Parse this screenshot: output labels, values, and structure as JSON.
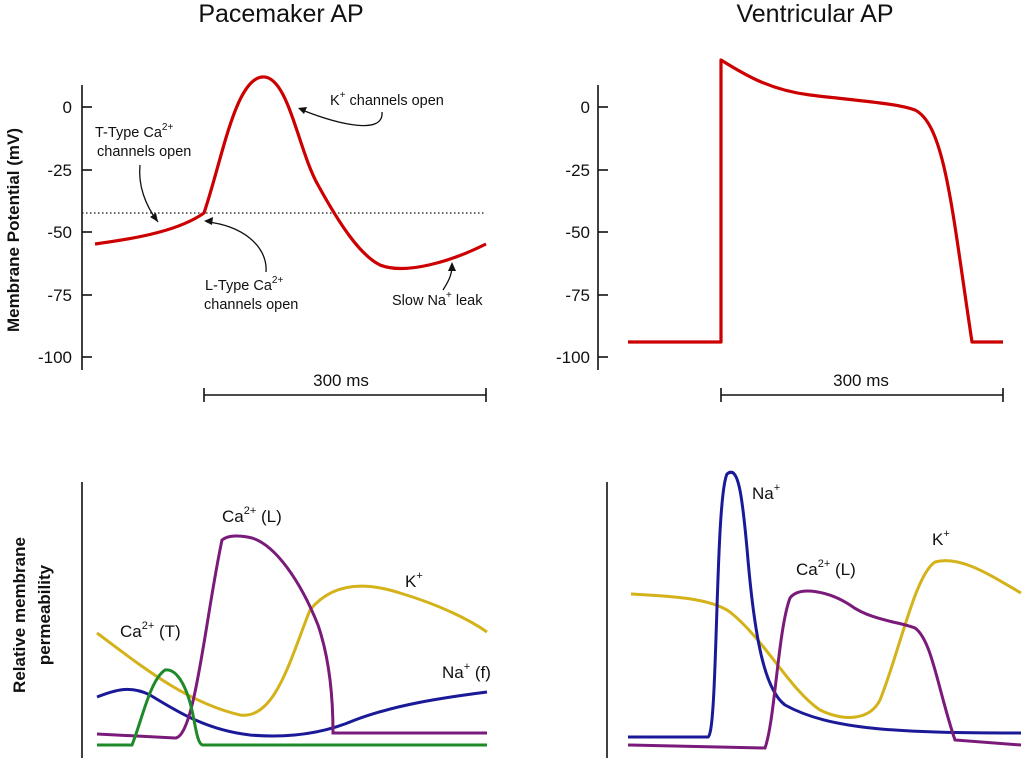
{
  "panels": {
    "pacemaker_title": "Pacemaker AP",
    "ventricular_title": "Ventricular AP"
  },
  "axes": {
    "ylabel_top": "Membrane Potential (mV)",
    "ylabel_bottom_line1": "Relative membrane",
    "ylabel_bottom_line2": "permeability",
    "ticks": [
      "0",
      "-25",
      "-50",
      "-75",
      "-100"
    ],
    "scale_bar": "300 ms"
  },
  "annotations": {
    "t_type_line1": "T-Type Ca",
    "t_type_sup": "2+",
    "t_type_line2": "channels open",
    "l_type_line1": "L-Type Ca",
    "l_type_sup": "2+",
    "l_type_line2": "channels open",
    "k_open_pre": "K",
    "k_open_sup": "+",
    "k_open_post": " channels open",
    "na_leak_pre": "Slow Na",
    "na_leak_sup": "+",
    "na_leak_post": " leak"
  },
  "curve_labels": {
    "ca_l_pre": "Ca",
    "ca_l_sup": "2+",
    "ca_l_post": " (L)",
    "ca_t_pre": "Ca",
    "ca_t_sup": "2+",
    "ca_t_post": " (T)",
    "k_pre": "K",
    "k_sup": "+",
    "na_f_pre": "Na",
    "na_f_sup": "+",
    "na_f_post": " (f)",
    "v_na_pre": "Na",
    "v_na_sup": "+",
    "v_ca_pre": "Ca",
    "v_ca_sup": "2+",
    "v_ca_post": " (L)",
    "v_k_pre": "K",
    "v_k_sup": "+"
  },
  "colors": {
    "ap": "#cc0000",
    "na": "#1a1a99",
    "ca_l": "#7a1a7a",
    "ca_t": "#1f8a2a",
    "k": "#d4b21a"
  }
}
